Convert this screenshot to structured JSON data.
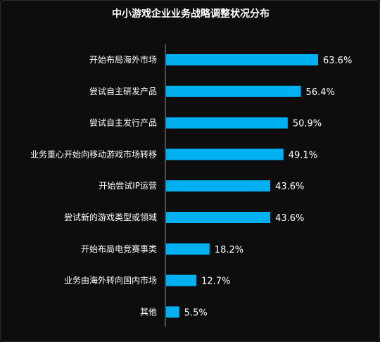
{
  "title": "中小游戏企业业务战略调整状况分布",
  "colors": {
    "bar": "#00b0f0",
    "background": "#0d0d0d",
    "text": "#ffffff",
    "axis": "#8a8a8a"
  },
  "chart_data": {
    "type": "bar",
    "orientation": "horizontal",
    "title": "中小游戏企业业务战略调整状况分布",
    "categories": [
      "开始布局海外市场",
      "尝试自主研发产品",
      "尝试自主发行产品",
      "业务重心开始向移动游戏市场转移",
      "开始尝试IP运营",
      "尝试新的游戏类型或领域",
      "开始布局电竞赛事类",
      "业务由海外转向国内市场",
      "其他"
    ],
    "values": [
      63.6,
      56.4,
      50.9,
      49.1,
      43.6,
      43.6,
      18.2,
      12.7,
      5.5
    ],
    "value_labels": [
      "63.6%",
      "56.4%",
      "50.9%",
      "49.1%",
      "43.6%",
      "43.6%",
      "18.2%",
      "12.7%",
      "5.5%"
    ],
    "xlim": [
      0,
      100
    ],
    "grid": false,
    "legend": "none"
  }
}
